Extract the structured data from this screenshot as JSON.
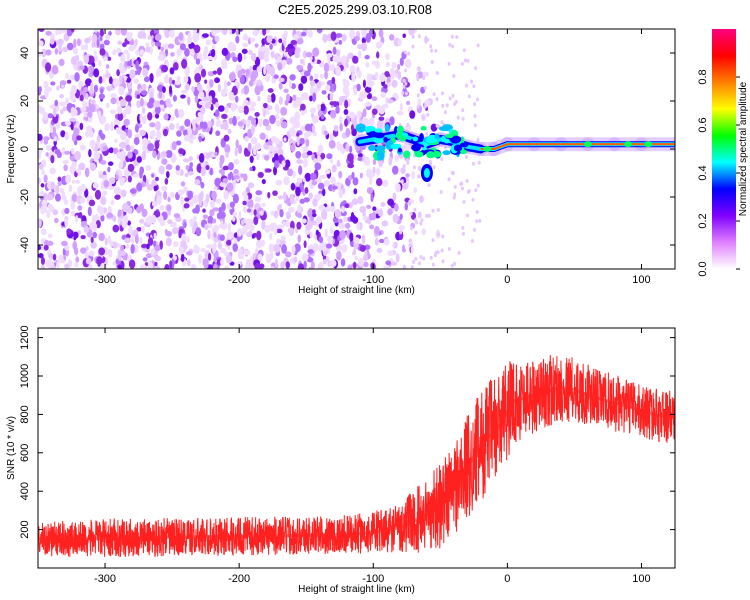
{
  "title": "C2E5.2025.299.03.10.R08",
  "chart_data": [
    {
      "type": "heatmap",
      "xlabel": "Height of straight line (km)",
      "ylabel": "Frequency (Hz)",
      "xlim": [
        -350,
        125
      ],
      "ylim": [
        -50,
        50
      ],
      "x_ticks": [
        -300,
        -200,
        -100,
        0,
        100
      ],
      "y_ticks": [
        -40,
        -20,
        0,
        20,
        40
      ],
      "colorbar": {
        "label": "Normalized spectral amplitude",
        "range": [
          0,
          1
        ],
        "ticks": [
          0.0,
          0.2,
          0.4,
          0.6,
          0.8
        ],
        "colors": [
          "#ffffff",
          "#e080ff",
          "#8000ff",
          "#0000ff",
          "#00ffff",
          "#00ff00",
          "#ffff00",
          "#ff8000",
          "#ff0000",
          "#ff0080"
        ]
      },
      "background_noise": {
        "x_range": [
          -350,
          -80
        ],
        "level": 0.15,
        "color": "#7a1af0"
      },
      "signal_track": [
        {
          "x": -110,
          "y": 3
        },
        {
          "x": -100,
          "y": 4
        },
        {
          "x": -90,
          "y": 5
        },
        {
          "x": -80,
          "y": 6
        },
        {
          "x": -70,
          "y": 4
        },
        {
          "x": -60,
          "y": 2
        },
        {
          "x": -50,
          "y": 4
        },
        {
          "x": -40,
          "y": 3
        },
        {
          "x": -30,
          "y": 1
        },
        {
          "x": -20,
          "y": 0
        },
        {
          "x": -10,
          "y": 0
        },
        {
          "x": 0,
          "y": 2
        },
        {
          "x": 20,
          "y": 2
        },
        {
          "x": 40,
          "y": 2
        },
        {
          "x": 60,
          "y": 2
        },
        {
          "x": 80,
          "y": 2
        },
        {
          "x": 100,
          "y": 2
        },
        {
          "x": 125,
          "y": 2
        }
      ],
      "secondary_feature": {
        "x": -60,
        "y": -10
      }
    },
    {
      "type": "line",
      "xlabel": "Height of straight line (km)",
      "ylabel": "SNR (10 * v/v)",
      "xlim": [
        -350,
        125
      ],
      "ylim": [
        0,
        1250
      ],
      "x_ticks": [
        -300,
        -200,
        -100,
        0,
        100
      ],
      "y_ticks": [
        200,
        400,
        600,
        800,
        1000,
        1200
      ],
      "line_color": "#ff2020",
      "series": [
        {
          "x": [
            -350,
            -300,
            -250,
            -200,
            -150,
            -120,
            -100,
            -80,
            -60,
            -50,
            -40,
            -30,
            -20,
            -15,
            -10,
            -5,
            0,
            5,
            10,
            20,
            30,
            40,
            50,
            60,
            70,
            80,
            90,
            100,
            110,
            125
          ],
          "values": [
            150,
            155,
            160,
            165,
            170,
            175,
            185,
            210,
            280,
            330,
            420,
            520,
            640,
            680,
            700,
            750,
            820,
            870,
            880,
            900,
            920,
            940,
            930,
            900,
            880,
            860,
            840,
            820,
            800,
            780
          ],
          "noise": [
            90,
            100,
            100,
            100,
            100,
            100,
            110,
            130,
            200,
            230,
            260,
            280,
            290,
            300,
            300,
            300,
            250,
            230,
            220,
            200,
            190,
            180,
            170,
            160,
            150,
            150,
            140,
            140,
            140,
            140
          ]
        }
      ]
    }
  ]
}
